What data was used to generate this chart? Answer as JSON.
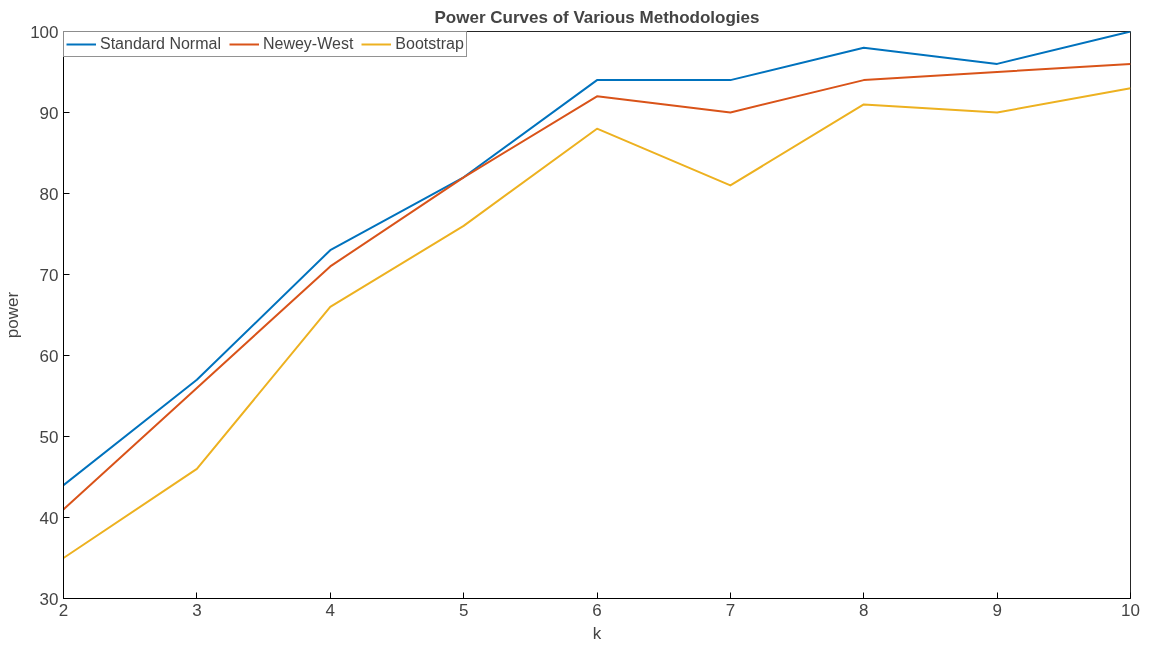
{
  "chart_data": {
    "type": "line",
    "title": "Power Curves of Various Methodologies",
    "xlabel": "k",
    "ylabel": "power",
    "x": [
      2,
      3,
      4,
      5,
      6,
      7,
      8,
      9,
      10
    ],
    "series": [
      {
        "name": "Standard Normal",
        "color": "#0072bd",
        "values": [
          44,
          57,
          73,
          82,
          94,
          94,
          98,
          96,
          100
        ]
      },
      {
        "name": "Newey-West",
        "color": "#d95319",
        "values": [
          41,
          56,
          71,
          82,
          92,
          90,
          94,
          95,
          96
        ]
      },
      {
        "name": "Bootstrap",
        "color": "#edb120",
        "values": [
          35,
          46,
          66,
          76,
          88,
          81,
          91,
          90,
          93
        ]
      }
    ],
    "xlim": [
      2,
      10
    ],
    "xticks": [
      2,
      3,
      4,
      5,
      6,
      7,
      8,
      9,
      10
    ],
    "ylim": [
      30,
      100
    ],
    "yticks": [
      30,
      40,
      50,
      60,
      70,
      80,
      90,
      100
    ],
    "grid": false,
    "legend": "top left",
    "marker": "none",
    "line_style": "solid"
  }
}
